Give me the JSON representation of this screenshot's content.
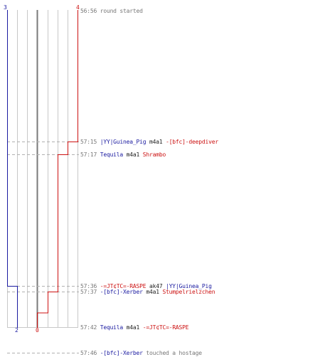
{
  "colors": {
    "team_blue": "#1a1aa0",
    "team_red": "#cc1111",
    "timestamp": "#777777",
    "grid": "#c8c8c8"
  },
  "counts": {
    "blue_start": "3",
    "red_start": "4",
    "blue_end": "2",
    "red_end": "0"
  },
  "events": [
    {
      "time": "56:56",
      "parts": [
        {
          "text": "round started",
          "color": "gray"
        }
      ]
    },
    {
      "time": "57:15",
      "parts": [
        {
          "text": "|YY|Guinea_Pig",
          "color": "blue"
        },
        {
          "text": "m4a1",
          "color": "black"
        },
        {
          "text": "-[bfc]-deepdiver",
          "color": "red"
        }
      ]
    },
    {
      "time": "57:17",
      "parts": [
        {
          "text": "Tequila",
          "color": "blue"
        },
        {
          "text": "m4a1",
          "color": "black"
        },
        {
          "text": "Shrambo",
          "color": "red"
        }
      ]
    },
    {
      "time": "57:36",
      "parts": [
        {
          "text": "-=JT¢TC=-RASPE",
          "color": "red"
        },
        {
          "text": "ak47",
          "color": "black"
        },
        {
          "text": "|YY|Guinea_Pig",
          "color": "blue"
        }
      ]
    },
    {
      "time": "57:37",
      "parts": [
        {
          "text": "-[bfc]-Xerber",
          "color": "blue"
        },
        {
          "text": "m4a1",
          "color": "black"
        },
        {
          "text": "Stumpelrielzchen",
          "color": "red"
        }
      ]
    },
    {
      "time": "57:42",
      "parts": [
        {
          "text": "Tequila",
          "color": "blue"
        },
        {
          "text": "m4a1",
          "color": "black"
        },
        {
          "text": "-=JT¢TC=-RASPE",
          "color": "red"
        }
      ]
    },
    {
      "time": "57:46",
      "parts": [
        {
          "text": "-[bfc]-Xerber",
          "color": "blue"
        },
        {
          "text": "touched a hostage",
          "color": "gray"
        }
      ]
    }
  ]
}
